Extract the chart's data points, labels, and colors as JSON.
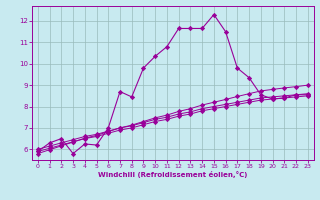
{
  "xlabel": "Windchill (Refroidissement éolien,°C)",
  "background_color": "#c8eaf0",
  "line_color": "#990099",
  "grid_color": "#99bbbb",
  "xlim": [
    -0.5,
    23.5
  ],
  "ylim": [
    5.5,
    12.7
  ],
  "xticks": [
    0,
    1,
    2,
    3,
    4,
    5,
    6,
    7,
    8,
    9,
    10,
    11,
    12,
    13,
    14,
    15,
    16,
    17,
    18,
    19,
    20,
    21,
    22,
    23
  ],
  "yticks": [
    6,
    7,
    8,
    9,
    10,
    11,
    12
  ],
  "curve1_x": [
    0,
    1,
    2,
    3,
    4,
    5,
    6,
    7,
    8,
    9,
    10,
    11,
    12,
    13,
    14,
    15,
    16,
    17,
    18,
    19,
    20,
    21,
    22,
    23
  ],
  "curve1_y": [
    5.9,
    6.3,
    6.5,
    5.8,
    6.25,
    6.2,
    7.0,
    8.7,
    8.45,
    9.8,
    10.35,
    10.8,
    11.65,
    11.65,
    11.65,
    12.3,
    11.5,
    9.8,
    9.35,
    8.55,
    8.35,
    8.4,
    8.55,
    8.55
  ],
  "curve2_x": [
    0,
    1,
    2,
    3,
    4,
    5,
    6,
    7,
    8,
    9,
    10,
    11,
    12,
    13,
    14,
    15,
    16,
    17,
    18,
    19,
    20,
    21,
    22,
    23
  ],
  "curve2_y": [
    6.0,
    6.15,
    6.3,
    6.45,
    6.6,
    6.7,
    6.85,
    7.0,
    7.1,
    7.25,
    7.4,
    7.5,
    7.65,
    7.75,
    7.9,
    8.0,
    8.1,
    8.2,
    8.3,
    8.4,
    8.45,
    8.5,
    8.55,
    8.6
  ],
  "curve3_x": [
    0,
    1,
    2,
    3,
    4,
    5,
    6,
    7,
    8,
    9,
    10,
    11,
    12,
    13,
    14,
    15,
    16,
    17,
    18,
    19,
    20,
    21,
    22,
    23
  ],
  "curve3_y": [
    5.9,
    6.05,
    6.2,
    6.35,
    6.5,
    6.6,
    6.75,
    6.9,
    7.0,
    7.15,
    7.3,
    7.4,
    7.55,
    7.65,
    7.8,
    7.9,
    8.0,
    8.1,
    8.2,
    8.3,
    8.35,
    8.4,
    8.45,
    8.5
  ],
  "curve4_x": [
    0,
    1,
    2,
    3,
    4,
    5,
    6,
    7,
    8,
    9,
    10,
    11,
    12,
    13,
    14,
    15,
    16,
    17,
    18,
    19,
    20,
    21,
    22,
    23
  ],
  "curve4_y": [
    5.8,
    5.98,
    6.16,
    6.34,
    6.52,
    6.65,
    6.83,
    7.0,
    7.13,
    7.3,
    7.47,
    7.6,
    7.77,
    7.9,
    8.07,
    8.2,
    8.33,
    8.47,
    8.6,
    8.73,
    8.8,
    8.87,
    8.93,
    9.0
  ]
}
